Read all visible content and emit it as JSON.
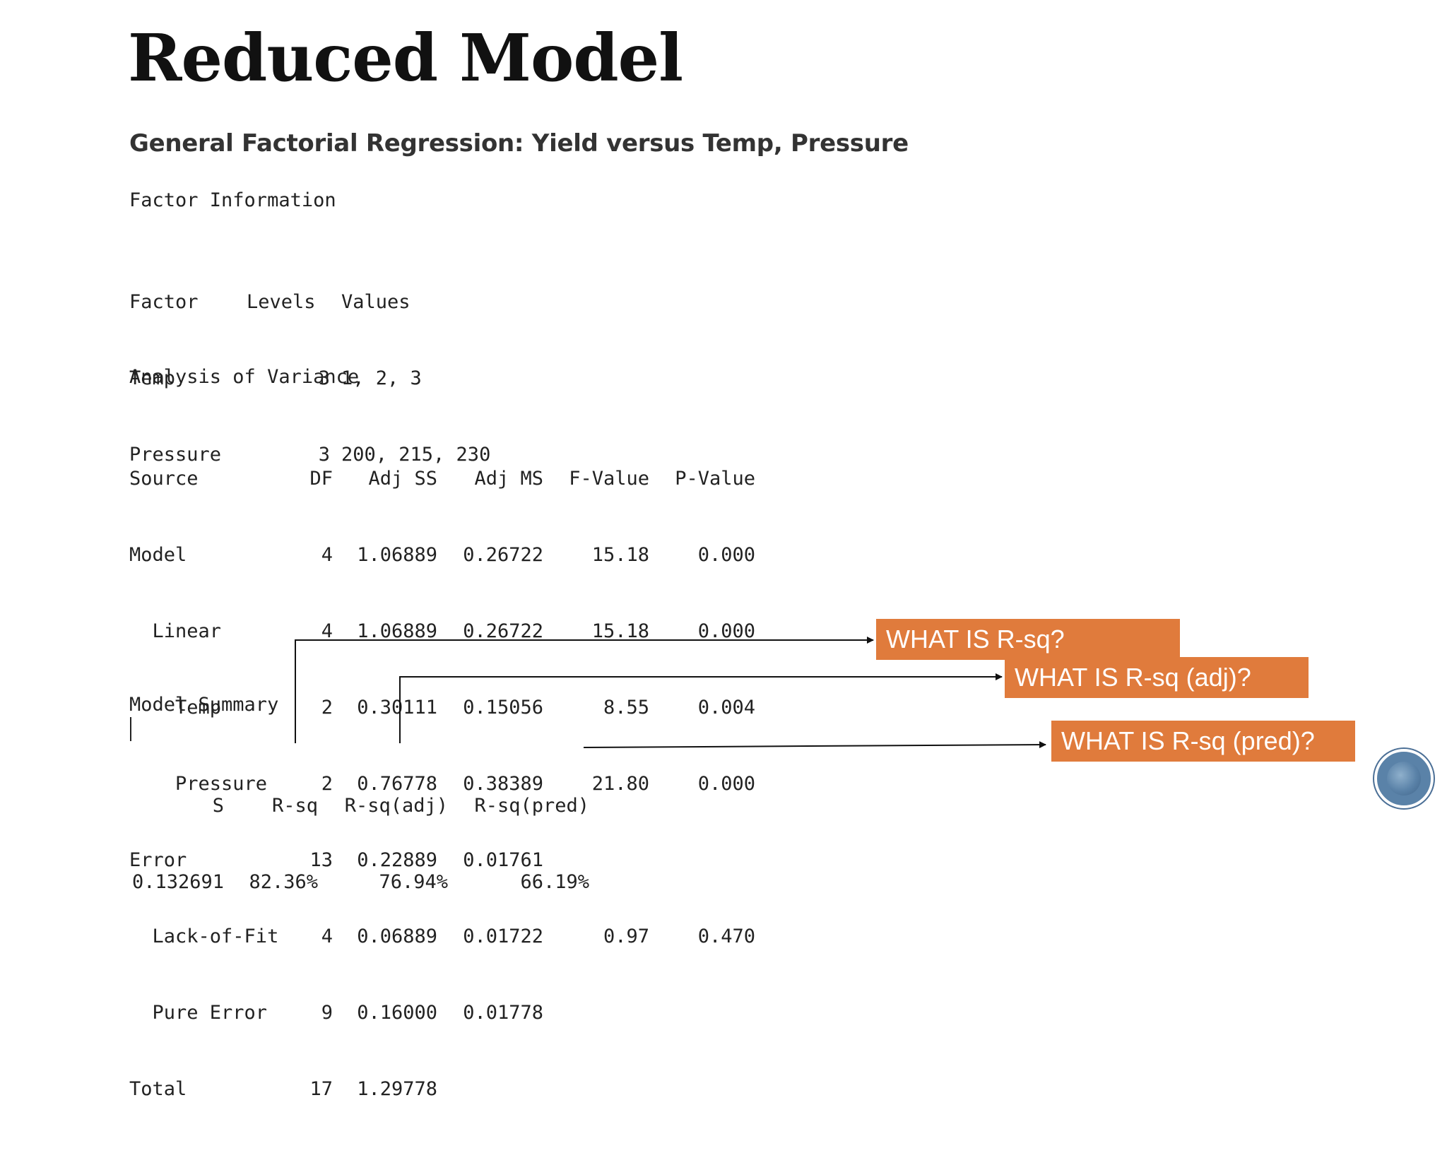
{
  "title": "Reduced Model",
  "subtitle": "General Factorial Regression: Yield versus Temp, Pressure",
  "factor_info": {
    "heading": "Factor Information",
    "columns": [
      "Factor",
      "Levels",
      "Values"
    ],
    "rows": [
      [
        "Temp",
        "3",
        "1, 2, 3"
      ],
      [
        "Pressure",
        "3",
        "200, 215, 230"
      ]
    ]
  },
  "anova": {
    "heading": "Analysis of Variance",
    "columns": [
      "Source",
      "DF",
      "Adj SS",
      "Adj MS",
      "F-Value",
      "P-Value"
    ],
    "rows": [
      [
        "Model",
        "4",
        "1.06889",
        "0.26722",
        "15.18",
        "0.000"
      ],
      [
        "  Linear",
        "4",
        "1.06889",
        "0.26722",
        "15.18",
        "0.000"
      ],
      [
        "    Temp",
        "2",
        "0.30111",
        "0.15056",
        "8.55",
        "0.004"
      ],
      [
        "    Pressure",
        "2",
        "0.76778",
        "0.38389",
        "21.80",
        "0.000"
      ],
      [
        "Error",
        "13",
        "0.22889",
        "0.01761",
        "",
        ""
      ],
      [
        "  Lack-of-Fit",
        "4",
        "0.06889",
        "0.01722",
        "0.97",
        "0.470"
      ],
      [
        "  Pure Error",
        "9",
        "0.16000",
        "0.01778",
        "",
        ""
      ],
      [
        "Total",
        "17",
        "1.29778",
        "",
        "",
        ""
      ]
    ]
  },
  "model_summary": {
    "heading": "Model Summary",
    "columns": [
      "S",
      "R-sq",
      "R-sq(adj)",
      "R-sq(pred)"
    ],
    "values": [
      "0.132691",
      "82.36%",
      "76.94%",
      "66.19%"
    ]
  },
  "callouts": {
    "rsq": "WHAT IS R-sq?",
    "rsq_adj": "WHAT IS R-sq (adj)?",
    "rsq_pred": "WHAT IS R-sq (pred)?"
  },
  "colors": {
    "callout_bg": "#E07B3C",
    "callout_text": "#FFFFFF",
    "logo": "#5A82A8"
  }
}
